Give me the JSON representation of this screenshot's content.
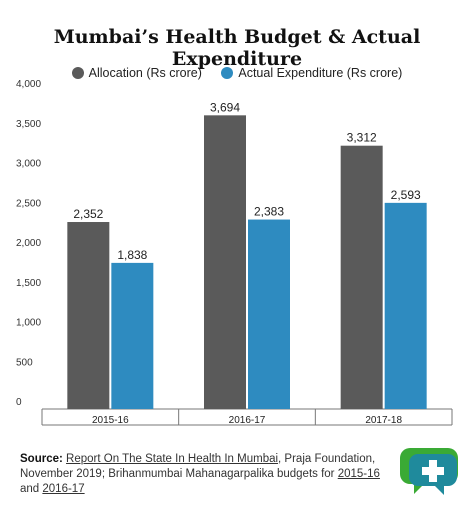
{
  "chart_data": {
    "type": "bar",
    "title": "Mumbai’s Health Budget & Actual Expenditure",
    "categories": [
      "2015-16",
      "2016-17",
      "2017-18"
    ],
    "series": [
      {
        "name": "Allocation (Rs crore)",
        "values": [
          2352,
          3694,
          3312
        ],
        "labels": [
          "2,352",
          "3,694",
          "3,312"
        ],
        "color": "#5a5a5a"
      },
      {
        "name": "Actual Expenditure (Rs crore)",
        "values": [
          1838,
          2383,
          2593
        ],
        "labels": [
          "1,838",
          "2,383",
          "2,593"
        ],
        "color": "#2e8bc0"
      }
    ],
    "yticks": [
      0,
      500,
      1000,
      1500,
      2000,
      2500,
      3000,
      3500,
      4000
    ],
    "ytick_labels": [
      "0",
      "500",
      "1,000",
      "1,500",
      "2,000",
      "2,500",
      "3,000",
      "3,500",
      "4,000"
    ],
    "ylim": [
      0,
      4000
    ],
    "xlabel": "",
    "ylabel": "",
    "grid": false,
    "legend_position": "top"
  },
  "source": {
    "label": "Source:",
    "link1": "Report On The State In Health In Mumbai",
    "text1": ", Praja Foundation, November 2019; Brihanmumbai Mahanagarpalika budgets for ",
    "link2": "2015-16",
    "text2": " and ",
    "link3": "2016-17"
  },
  "logo": {
    "icon": "factchecker-chat-bubble-plus-logo",
    "colors": [
      "#3aaa35",
      "#1f8a9c"
    ]
  }
}
